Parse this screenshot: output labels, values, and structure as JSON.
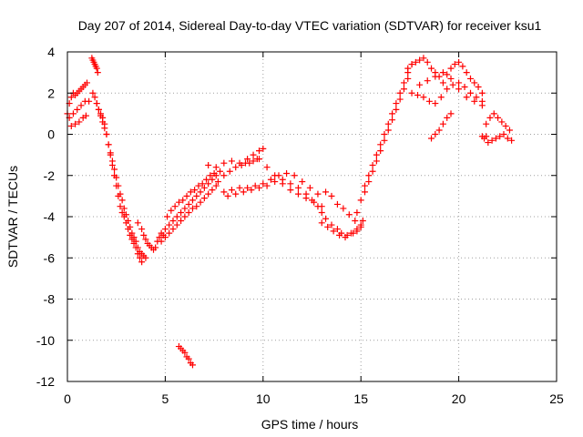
{
  "chart_data": {
    "type": "scatter",
    "title": "Day 207 of 2014, Sidereal Day-to-day VTEC variation (SDTVAR) for receiver ksu1",
    "xlabel": "GPS time / hours",
    "ylabel": "SDTVAR / TECUs",
    "xlim": [
      0,
      25
    ],
    "ylim": [
      -12,
      4
    ],
    "xticks": [
      0,
      5,
      10,
      15,
      20,
      25
    ],
    "yticks": [
      -12,
      -10,
      -8,
      -6,
      -4,
      -2,
      0,
      2,
      4
    ],
    "grid": true,
    "marker": "+",
    "color": "#ff0000",
    "series": [
      {
        "name": "ksu1",
        "x": [
          0.0,
          0.1,
          0.2,
          0.3,
          0.4,
          0.5,
          0.6,
          0.7,
          0.8,
          0.9,
          1.0,
          0.1,
          0.3,
          0.5,
          0.7,
          0.9,
          1.1,
          0.2,
          0.4,
          0.6,
          0.8,
          0.95,
          1.25,
          1.3,
          1.35,
          1.4,
          1.45,
          1.5,
          1.55,
          1.3,
          1.4,
          1.5,
          1.6,
          1.7,
          1.8,
          1.9,
          2.0,
          2.1,
          2.2,
          2.3,
          2.4,
          2.5,
          2.6,
          2.7,
          2.8,
          2.9,
          3.0,
          3.1,
          3.2,
          3.3,
          3.4,
          3.5,
          3.6,
          3.7,
          3.8,
          1.5,
          1.6,
          1.7,
          1.8,
          1.9,
          2.0,
          2.1,
          2.2,
          2.3,
          2.4,
          2.5,
          2.6,
          2.7,
          2.8,
          2.9,
          3.0,
          3.1,
          3.2,
          3.3,
          3.4,
          3.5,
          3.6,
          3.7,
          3.8,
          3.9,
          4.0,
          3.6,
          3.8,
          3.9,
          4.0,
          4.1,
          4.2,
          4.3,
          4.4,
          4.5,
          4.6,
          4.7,
          4.8,
          4.9,
          4.8,
          5.0,
          5.2,
          5.4,
          5.6,
          5.8,
          6.0,
          6.2,
          6.4,
          6.6,
          6.8,
          7.0,
          7.2,
          7.4,
          7.6,
          5.0,
          5.2,
          5.4,
          5.6,
          5.8,
          6.0,
          6.2,
          6.4,
          6.6,
          6.8,
          7.0,
          7.2,
          7.4,
          7.6,
          7.8,
          5.1,
          5.3,
          5.5,
          5.7,
          5.9,
          6.1,
          6.3,
          6.5,
          6.7,
          6.9,
          7.1,
          7.3,
          7.5,
          5.7,
          5.8,
          5.9,
          6.0,
          6.1,
          6.2,
          6.3,
          6.4,
          7.2,
          7.6,
          8.0,
          8.4,
          8.8,
          9.2,
          9.5,
          9.8,
          10.0,
          7.7,
          8.0,
          8.3,
          8.6,
          8.9,
          9.1,
          9.3,
          9.5,
          9.7,
          8.0,
          8.4,
          8.8,
          9.2,
          9.6,
          10.0,
          10.4,
          10.8,
          11.2,
          11.6,
          12.0,
          12.4,
          12.8,
          8.2,
          8.6,
          9.0,
          9.4,
          9.8,
          10.2,
          10.6,
          11.0,
          11.4,
          11.8,
          12.2,
          9.8,
          10.2,
          10.6,
          11.0,
          11.4,
          11.8,
          12.2,
          12.6,
          13.0,
          12.5,
          12.8,
          13.0,
          13.2,
          13.5,
          13.8,
          14.0,
          14.3,
          14.6,
          14.8,
          15.0,
          13.0,
          13.3,
          13.6,
          13.9,
          14.2,
          14.5,
          14.8,
          15.1,
          13.2,
          13.5,
          13.8,
          14.1,
          14.4,
          14.7,
          15.0,
          14.8,
          15.0,
          15.2,
          15.4,
          15.6,
          15.8,
          16.0,
          16.2,
          16.4,
          16.6,
          16.8,
          17.0,
          17.2,
          17.4,
          17.6,
          15.2,
          15.4,
          15.6,
          15.8,
          16.0,
          16.2,
          16.4,
          16.6,
          16.8,
          17.0,
          17.2,
          17.4,
          17.4,
          17.6,
          17.8,
          18.0,
          18.2,
          18.4,
          18.6,
          18.8,
          19.0,
          19.2,
          19.4,
          19.6,
          19.8,
          20.0,
          20.2,
          20.4,
          20.6,
          20.8,
          21.0,
          21.2,
          17.6,
          17.9,
          18.2,
          18.5,
          18.8,
          19.1,
          19.4,
          19.7,
          20.0,
          20.3,
          20.6,
          20.9,
          21.2,
          18.0,
          18.4,
          18.8,
          19.2,
          19.6,
          20.0,
          20.4,
          20.8,
          21.2,
          18.6,
          18.8,
          19.0,
          19.2,
          19.4,
          19.6,
          21.4,
          21.6,
          21.8,
          22.0,
          22.2,
          22.4,
          22.6,
          21.5,
          21.7,
          21.9,
          22.1,
          22.3,
          22.5,
          22.7,
          21.2,
          21.3,
          21.4
        ],
        "y": [
          1.0,
          1.5,
          1.8,
          2.0,
          1.9,
          2.0,
          2.1,
          2.2,
          2.3,
          2.4,
          2.5,
          0.8,
          1.0,
          1.2,
          1.4,
          1.6,
          1.6,
          0.4,
          0.5,
          0.6,
          0.8,
          0.9,
          3.7,
          3.6,
          3.5,
          3.4,
          3.3,
          3.2,
          3.0,
          2.0,
          1.8,
          1.5,
          1.2,
          1.0,
          0.8,
          0.5,
          0.0,
          -0.5,
          -1.0,
          -1.5,
          -2.0,
          -2.5,
          -3.0,
          -3.5,
          -3.8,
          -4.0,
          -4.3,
          -4.6,
          -4.9,
          -5.1,
          -5.3,
          -5.5,
          -5.8,
          -6.0,
          -6.2,
          1.5,
          1.2,
          0.9,
          0.6,
          0.3,
          0.0,
          -0.5,
          -0.9,
          -1.3,
          -1.7,
          -2.1,
          -2.5,
          -2.9,
          -3.2,
          -3.6,
          -3.9,
          -4.2,
          -4.5,
          -4.8,
          -5.0,
          -5.2,
          -5.5,
          -5.7,
          -5.8,
          -5.9,
          -6.0,
          -4.3,
          -4.6,
          -4.9,
          -5.1,
          -5.3,
          -5.4,
          -5.5,
          -5.6,
          -5.5,
          -5.2,
          -5.0,
          -4.8,
          -4.9,
          -5.2,
          -5.0,
          -4.8,
          -4.6,
          -4.4,
          -4.2,
          -4.0,
          -3.8,
          -3.6,
          -3.5,
          -3.3,
          -3.1,
          -2.9,
          -2.7,
          -2.5,
          -4.6,
          -4.4,
          -4.2,
          -4.0,
          -3.8,
          -3.6,
          -3.4,
          -3.2,
          -3.0,
          -2.8,
          -2.6,
          -2.4,
          -2.2,
          -2.0,
          -1.8,
          -4.0,
          -3.7,
          -3.5,
          -3.3,
          -3.2,
          -3.0,
          -2.8,
          -2.7,
          -2.5,
          -2.4,
          -2.2,
          -2.0,
          -1.9,
          -10.3,
          -10.4,
          -10.5,
          -10.6,
          -10.8,
          -10.9,
          -11.1,
          -11.2,
          -1.5,
          -1.6,
          -1.4,
          -1.3,
          -1.4,
          -1.2,
          -1.0,
          -0.8,
          -0.7,
          -2.3,
          -2.0,
          -1.8,
          -1.6,
          -1.5,
          -1.4,
          -1.4,
          -1.3,
          -1.2,
          -2.8,
          -2.7,
          -2.6,
          -2.6,
          -2.5,
          -2.4,
          -2.2,
          -2.0,
          -1.9,
          -2.0,
          -2.3,
          -2.6,
          -2.9,
          -3.0,
          -2.9,
          -2.8,
          -2.7,
          -2.6,
          -2.5,
          -2.3,
          -2.2,
          -2.4,
          -2.6,
          -2.9,
          -1.2,
          -1.6,
          -2.0,
          -2.4,
          -2.7,
          -2.9,
          -3.1,
          -3.3,
          -3.5,
          -3.2,
          -3.5,
          -3.8,
          -4.1,
          -4.4,
          -4.6,
          -4.8,
          -4.9,
          -4.8,
          -4.7,
          -4.4,
          -4.3,
          -4.5,
          -4.7,
          -4.9,
          -5.0,
          -4.8,
          -4.6,
          -4.2,
          -2.8,
          -3.0,
          -3.4,
          -3.6,
          -3.9,
          -4.2,
          -4.5,
          -3.8,
          -3.2,
          -2.5,
          -2.0,
          -1.5,
          -1.0,
          -0.5,
          0.0,
          0.5,
          1.0,
          1.5,
          2.0,
          2.5,
          3.0,
          3.4,
          -2.8,
          -2.3,
          -1.8,
          -1.3,
          -0.8,
          -0.3,
          0.2,
          0.7,
          1.2,
          1.7,
          2.2,
          2.7,
          3.2,
          3.4,
          3.5,
          3.6,
          3.7,
          3.5,
          3.2,
          3.0,
          2.8,
          2.5,
          2.9,
          3.2,
          3.4,
          3.5,
          3.3,
          3.0,
          2.7,
          2.5,
          2.3,
          2.0,
          2.0,
          1.9,
          1.8,
          1.6,
          1.5,
          1.8,
          2.2,
          2.4,
          2.5,
          2.3,
          2.0,
          1.8,
          1.6,
          2.4,
          2.6,
          2.8,
          3.0,
          2.7,
          2.2,
          1.8,
          1.6,
          1.4,
          -0.2,
          0.0,
          0.2,
          0.5,
          0.8,
          1.0,
          0.5,
          0.8,
          1.0,
          0.8,
          0.6,
          0.4,
          0.2,
          -0.4,
          -0.3,
          -0.2,
          -0.1,
          0.0,
          -0.2,
          -0.3,
          -0.1,
          -0.2,
          -0.1
        ]
      }
    ]
  }
}
